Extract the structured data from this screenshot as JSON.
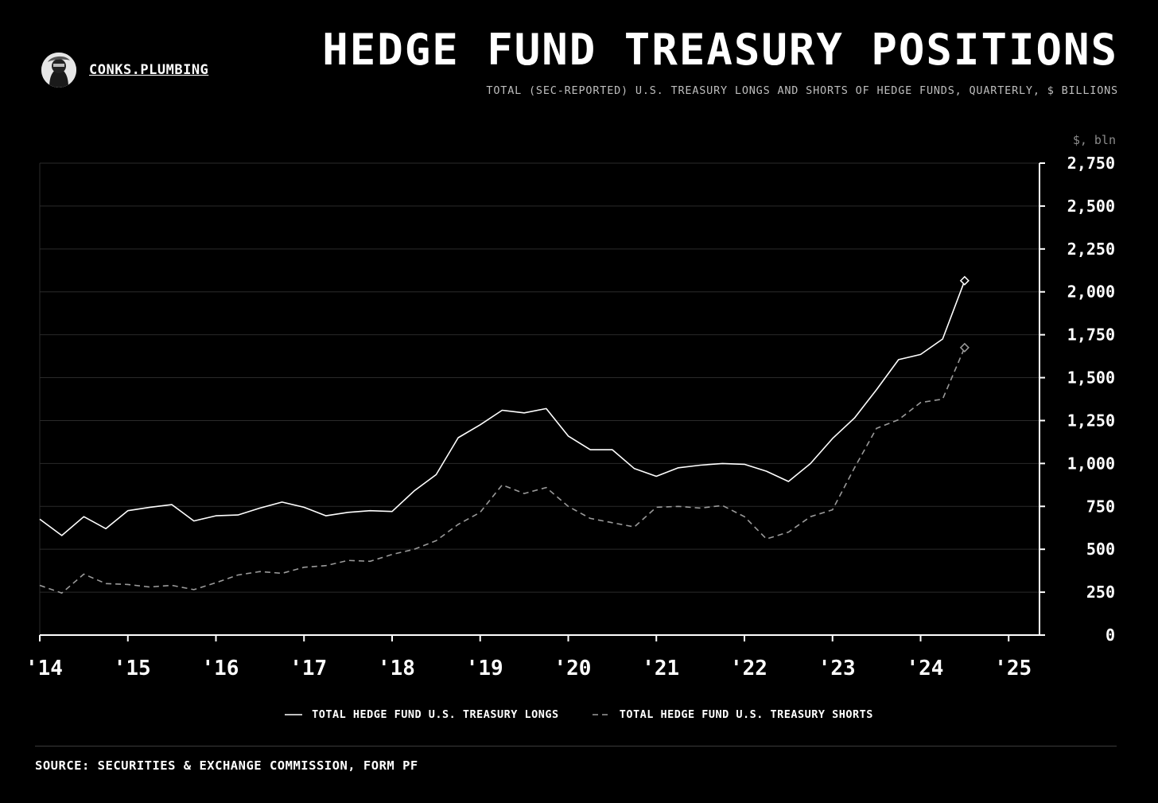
{
  "brand": {
    "name": "CONKS.PLUMBING",
    "avatar_icon": "masked-figure-avatar"
  },
  "header": {
    "title": "HEDGE FUND TREASURY POSITIONS",
    "subtitle": "TOTAL (SEC-REPORTED) U.S. TREASURY LONGS AND SHORTS OF HEDGE FUNDS, QUARTERLY, $ BILLIONS"
  },
  "footer": {
    "source": "SOURCE: SECURITIES & EXCHANGE COMMISSION, FORM PF"
  },
  "colors": {
    "background": "#000000",
    "longs": "#ffffff",
    "shorts": "#9a9a9a",
    "grid": "#2a2a2a"
  },
  "chart_data": {
    "type": "line",
    "ylabel": "$, bln",
    "ylim": [
      0,
      2750
    ],
    "yticks": [
      0,
      250,
      500,
      750,
      1000,
      1250,
      1500,
      1750,
      2000,
      2250,
      2500,
      2750
    ],
    "ytick_labels": [
      "0",
      "250",
      "500",
      "750",
      "1,000",
      "1,250",
      "1,500",
      "1,750",
      "2,000",
      "2,250",
      "2,500",
      "2,750"
    ],
    "xlim": [
      2014,
      2025.35
    ],
    "xticks": [
      2014,
      2015,
      2016,
      2017,
      2018,
      2019,
      2020,
      2021,
      2022,
      2023,
      2024,
      2025
    ],
    "xtick_labels": [
      "'14",
      "'15",
      "'16",
      "'17",
      "'18",
      "'19",
      "'20",
      "'21",
      "'22",
      "'23",
      "'24",
      "'25"
    ],
    "y_axis_position": "right",
    "grid": "horizontal",
    "legend_position": "bottom-center",
    "x": [
      2014.0,
      2014.25,
      2014.5,
      2014.75,
      2015.0,
      2015.25,
      2015.5,
      2015.75,
      2016.0,
      2016.25,
      2016.5,
      2016.75,
      2017.0,
      2017.25,
      2017.5,
      2017.75,
      2018.0,
      2018.25,
      2018.5,
      2018.75,
      2019.0,
      2019.25,
      2019.5,
      2019.75,
      2020.0,
      2020.25,
      2020.5,
      2020.75,
      2021.0,
      2021.25,
      2021.5,
      2021.75,
      2022.0,
      2022.25,
      2022.5,
      2022.75,
      2023.0,
      2023.25,
      2023.5,
      2023.75,
      2024.0,
      2024.25,
      2024.5
    ],
    "series": [
      {
        "name": "TOTAL HEDGE FUND U.S. TREASURY LONGS",
        "style": "solid",
        "values": [
          675,
          580,
          690,
          620,
          725,
          745,
          760,
          665,
          695,
          700,
          740,
          775,
          745,
          695,
          715,
          725,
          720,
          840,
          935,
          1150,
          1225,
          1310,
          1295,
          1320,
          1160,
          1080,
          1080,
          970,
          925,
          975,
          990,
          1000,
          995,
          955,
          895,
          1000,
          1145,
          1265,
          1430,
          1605,
          1635,
          1725,
          2065
        ]
      },
      {
        "name": "TOTAL HEDGE FUND U.S. TREASURY SHORTS",
        "style": "dashed",
        "values": [
          290,
          245,
          355,
          300,
          295,
          280,
          290,
          265,
          305,
          350,
          370,
          360,
          395,
          405,
          435,
          430,
          470,
          500,
          550,
          645,
          715,
          875,
          825,
          860,
          750,
          680,
          655,
          630,
          745,
          750,
          740,
          755,
          690,
          560,
          600,
          690,
          730,
          975,
          1205,
          1255,
          1355,
          1375,
          1675
        ]
      }
    ]
  }
}
